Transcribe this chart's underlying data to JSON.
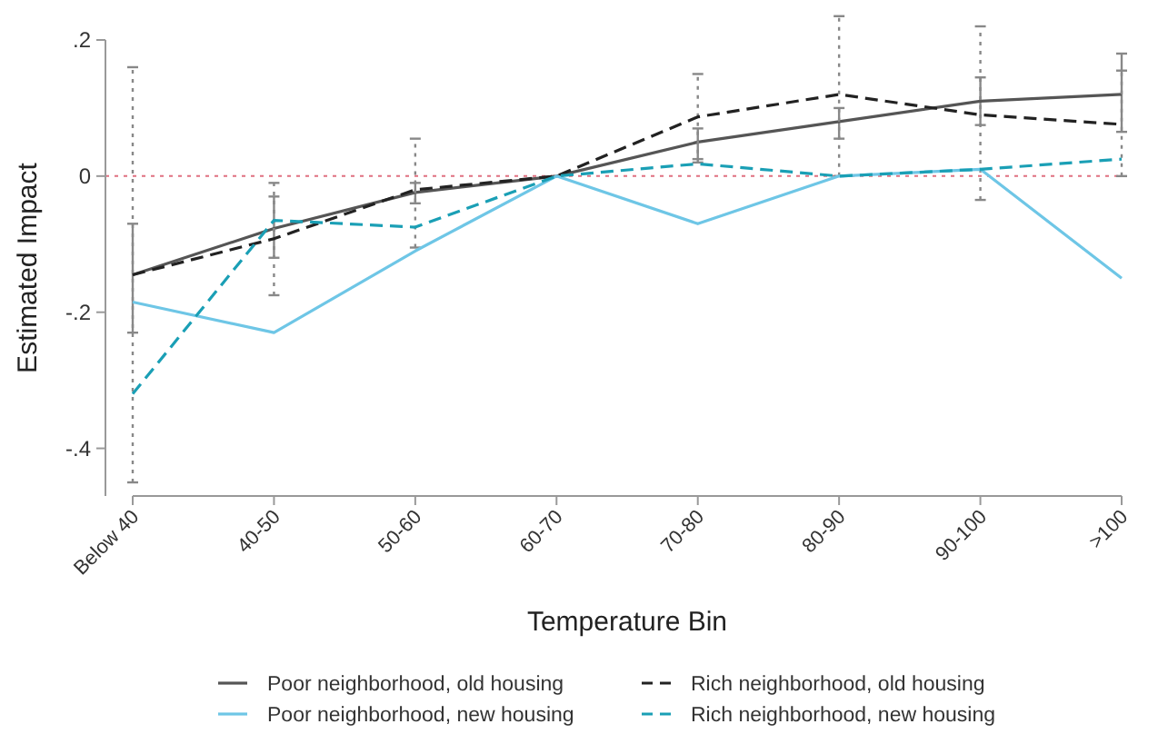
{
  "chart_data": {
    "type": "line",
    "xlabel": "Temperature Bin",
    "ylabel": "Estimated Impact",
    "categories": [
      "Below 40",
      "40-50",
      "50-60",
      "60-70",
      "70-80",
      "80-90",
      "90-100",
      ">100"
    ],
    "series": [
      {
        "name": "Poor neighborhood, old housing",
        "color": "#555555",
        "line_style": "solid",
        "values": [
          -0.145,
          -0.077,
          -0.024,
          0,
          0.05,
          0.08,
          0.11,
          0.12
        ],
        "errors": [
          [
            -0.23,
            -0.07
          ],
          [
            -0.12,
            -0.03
          ],
          [
            -0.04,
            -0.01
          ],
          null,
          [
            0.025,
            0.07
          ],
          [
            0.055,
            0.1
          ],
          [
            0.075,
            0.145
          ],
          [
            0.065,
            0.18
          ]
        ]
      },
      {
        "name": "Rich neighborhood, old housing",
        "color": "#222222",
        "line_style": "dashed",
        "values": [
          -0.145,
          -0.092,
          -0.02,
          0,
          0.087,
          0.12,
          0.09,
          0.076
        ],
        "errors": [
          [
            -0.45,
            0.16
          ],
          [
            -0.175,
            -0.01
          ],
          [
            -0.105,
            0.055
          ],
          null,
          [
            0.02,
            0.15
          ],
          [
            0,
            0.235
          ],
          [
            -0.035,
            0.22
          ],
          [
            0,
            0.155
          ]
        ]
      },
      {
        "name": "Poor neighborhood, new housing",
        "color": "#6ec6e6",
        "line_style": "solid",
        "values": [
          -0.185,
          -0.23,
          -0.11,
          0,
          -0.07,
          0,
          0.01,
          -0.15
        ]
      },
      {
        "name": "Rich neighborhood, new housing",
        "color": "#1a9fb5",
        "line_style": "dashed",
        "values": [
          -0.32,
          -0.065,
          -0.075,
          0,
          0.018,
          0,
          0.01,
          0.025
        ]
      }
    ],
    "ylim": [
      -0.47,
      0.2
    ],
    "yticks": [
      {
        "value": 0.2,
        "label": ".2"
      },
      0,
      {
        "value": -0.2,
        "label": "-.2"
      },
      {
        "value": -0.4,
        "label": "-.4"
      }
    ],
    "ref_lines": [
      {
        "axis": "y",
        "value": 0,
        "color": "#e07080",
        "line_style": "dotted"
      }
    ],
    "grid": false,
    "legend": "bottom",
    "marker": "none"
  }
}
